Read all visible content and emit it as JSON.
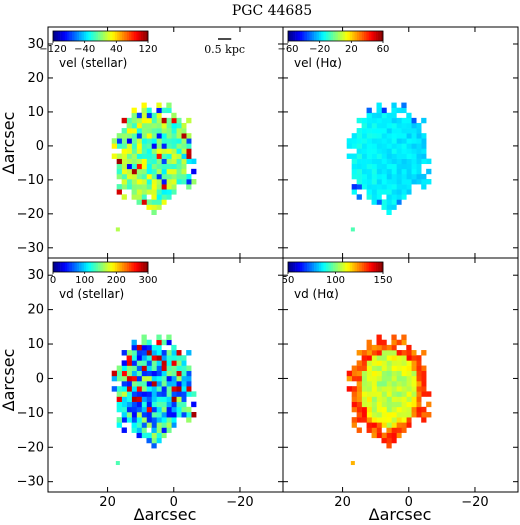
{
  "chart_data": {
    "type": "heatmap",
    "title": "PGC 44685",
    "xlabel": "Δarcsec",
    "ylabel": "Δarcsec",
    "xlim": [
      38,
      -33
    ],
    "ylim": [
      -33,
      35
    ],
    "xticks": [
      20,
      0,
      -20
    ],
    "yticks": [
      30,
      20,
      10,
      0,
      -10,
      -20,
      -30
    ],
    "scale_bar": {
      "label": "0.5 kpc",
      "length_arcsec": 4
    },
    "panels": [
      {
        "id": "vel-stellar",
        "colorbar": {
          "label": "vel (stellar)",
          "min": -120,
          "max": 120,
          "tick_labels": [
            "−120",
            "−40",
            "40",
            "120"
          ]
        },
        "pattern": "stellar-velocity",
        "show_scale_bar": false
      },
      {
        "id": "vel-halpha",
        "colorbar": {
          "label": "vel (Hα)",
          "min": -60,
          "max": 60,
          "tick_labels": [
            "−60",
            "−20",
            "20",
            "60"
          ]
        },
        "pattern": "gas-velocity",
        "show_scale_bar": true
      },
      {
        "id": "vd-stellar",
        "colorbar": {
          "label": "vd (stellar)",
          "min": 0,
          "max": 300,
          "tick_labels": [
            "0",
            "100",
            "200",
            "300"
          ]
        },
        "pattern": "stellar-dispersion",
        "show_scale_bar": false
      },
      {
        "id": "vd-halpha",
        "colorbar": {
          "label": "vd (Hα)",
          "min": 50,
          "max": 150,
          "tick_labels": [
            "50",
            "100",
            "150"
          ]
        },
        "pattern": "gas-dispersion",
        "show_scale_bar": false
      }
    ]
  }
}
